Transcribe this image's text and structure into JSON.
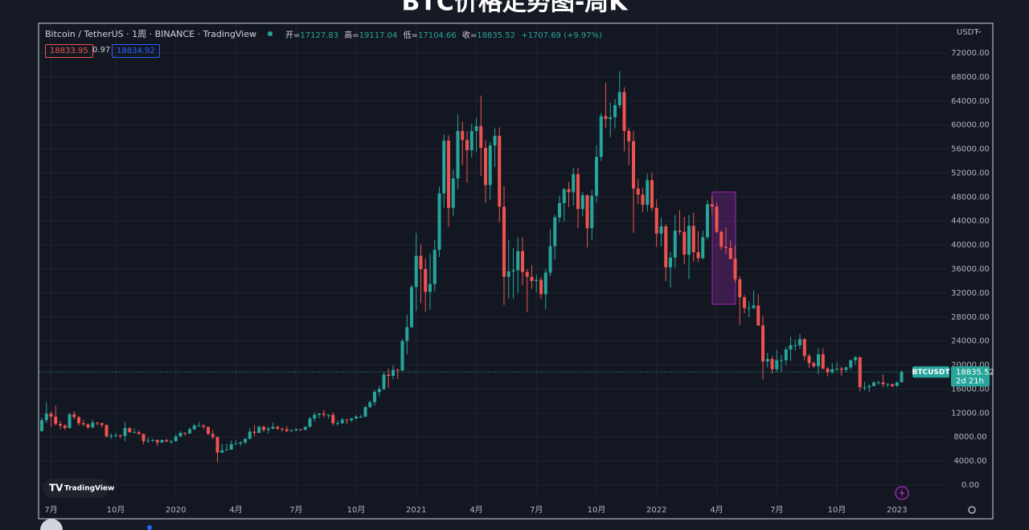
{
  "chart_data": {
    "type": "candlestick",
    "title": "BTC价格走势图-周K",
    "symbol_title": "Bitcoin / TetherUS · 1周 · BINANCE · TradingView",
    "open_label": "开=",
    "high_label": "高=",
    "low_label": "低=",
    "close_label": "收=",
    "change_label": "+1707.69 (+9.97%)",
    "bid": 18833.95,
    "spread": 0.97,
    "ask": 18834.92,
    "currency": "USDT",
    "price_tag_symbol": "BTCUSDT",
    "countdown": "2d 21h",
    "logo": "TradingView",
    "up_color": "#26a69a",
    "down_color": "#ef5350",
    "grid": true,
    "categories": [
      null,
      null,
      "7月",
      null,
      null,
      null,
      null,
      null,
      null,
      null,
      null,
      null,
      null,
      null,
      null,
      null,
      "10月",
      null,
      null,
      null,
      null,
      null,
      null,
      null,
      null,
      null,
      null,
      null,
      null,
      "2020",
      null,
      null,
      null,
      null,
      null,
      null,
      null,
      null,
      null,
      null,
      null,
      null,
      "4月",
      null,
      null,
      null,
      null,
      null,
      null,
      null,
      null,
      null,
      null,
      null,
      null,
      "7月",
      null,
      null,
      null,
      null,
      null,
      null,
      null,
      null,
      null,
      null,
      null,
      null,
      "10月",
      null,
      null,
      null,
      null,
      null,
      null,
      null,
      null,
      null,
      null,
      null,
      null,
      "2021",
      null,
      null,
      null,
      null,
      null,
      null,
      null,
      null,
      null,
      null,
      null,
      null,
      "4月",
      null,
      null,
      null,
      null,
      null,
      null,
      null,
      null,
      null,
      null,
      null,
      null,
      "7月",
      null,
      null,
      null,
      null,
      null,
      null,
      null,
      null,
      null,
      null,
      null,
      null,
      "10月",
      null,
      null,
      null,
      null,
      null,
      null,
      null,
      null,
      null,
      null,
      null,
      null,
      "2022",
      null,
      null,
      null,
      null,
      null,
      null,
      null,
      null,
      null,
      null,
      null,
      null,
      "4月",
      null,
      null,
      null,
      null,
      null,
      null,
      null,
      null,
      null,
      null,
      null,
      null,
      "7月",
      null,
      null,
      null,
      null,
      null,
      null,
      null,
      null,
      null,
      null,
      null,
      null,
      "10月",
      null,
      null,
      null,
      null,
      null,
      null,
      null,
      null,
      null,
      null,
      null,
      null,
      "2023",
      null
    ],
    "open": [
      9000,
      10800,
      11900,
      11400,
      10200,
      9900,
      9500,
      11800,
      11300,
      10300,
      10100,
      9600,
      10400,
      10300,
      10000,
      8100,
      8200,
      8300,
      8200,
      9500,
      8800,
      8800,
      8500,
      7300,
      7400,
      7500,
      7100,
      7500,
      7300,
      7300,
      8100,
      8700,
      8600,
      9300,
      9900,
      9900,
      9700,
      8500,
      8000,
      5400,
      5800,
      5900,
      6800,
      6900,
      7100,
      7700,
      8900,
      8700,
      9700,
      9200,
      9400,
      9700,
      9400,
      9300,
      9000,
      9100,
      9300,
      9200,
      9700,
      11100,
      11700,
      11900,
      11700,
      11700,
      10300,
      10300,
      10900,
      10800,
      11100,
      11400,
      11400,
      13000,
      13800,
      15500,
      16000,
      18400,
      18200,
      19200,
      19100,
      24000,
      26300,
      33000,
      38200,
      36000,
      32200,
      33500,
      39200,
      48600,
      57400,
      46200,
      51100,
      59000,
      57500,
      55800,
      59000,
      59800,
      56200,
      50000,
      56600,
      58200,
      46400,
      34700,
      35600,
      35800,
      39000,
      35500,
      34700,
      34000,
      34200,
      31800,
      35400,
      39800,
      44600,
      47000,
      49300,
      48800,
      51800,
      46000,
      48300,
      42800,
      48200,
      54700,
      61500,
      61000,
      61300,
      63300,
      65500,
      59000,
      57300,
      49400,
      48400,
      46700,
      50800,
      46200,
      41900,
      43100,
      36300,
      37900,
      42400,
      42200,
      38400,
      43200,
      38800,
      37800,
      41300,
      46800,
      46400,
      42200,
      39700,
      39500,
      37700,
      34300,
      31300,
      29500,
      29500,
      29900,
      26600,
      20600,
      21000,
      19300,
      20800,
      20800,
      22600,
      23300,
      23300,
      24300,
      21500,
      20300,
      19800,
      21800,
      19400,
      18800,
      19300,
      19400,
      19200,
      19600,
      20800,
      21300,
      16300,
      16300,
      16500,
      17100,
      17100,
      16800,
      16800,
      16500,
      17127.83
    ],
    "high": [
      11200,
      13800,
      12300,
      13200,
      10700,
      10200,
      12000,
      12300,
      11500,
      10900,
      10300,
      10900,
      10500,
      10400,
      10100,
      8600,
      8700,
      8400,
      10500,
      9600,
      9400,
      9100,
      8600,
      7900,
      7700,
      7600,
      7600,
      7700,
      7500,
      8500,
      9000,
      8800,
      9600,
      10200,
      10500,
      10200,
      9700,
      9200,
      8100,
      6900,
      6900,
      7400,
      7500,
      7300,
      7800,
      9500,
      10000,
      9900,
      9900,
      9700,
      10400,
      9900,
      9600,
      9800,
      9300,
      9500,
      9300,
      9800,
      11400,
      12100,
      12000,
      12500,
      11800,
      12100,
      10800,
      11200,
      11000,
      11200,
      11700,
      11700,
      13200,
      14100,
      15900,
      16500,
      18800,
      19400,
      19900,
      19400,
      24300,
      28400,
      33300,
      42000,
      40100,
      37800,
      38500,
      40900,
      49700,
      58400,
      58300,
      52600,
      61800,
      60600,
      59000,
      60200,
      61200,
      64900,
      57500,
      57200,
      59500,
      59600,
      49800,
      40900,
      39500,
      41300,
      41300,
      36000,
      36600,
      35100,
      34700,
      36000,
      42600,
      45000,
      48200,
      49500,
      50500,
      52900,
      52900,
      48800,
      48400,
      49200,
      56600,
      62000,
      67000,
      63700,
      64300,
      69000,
      66300,
      59500,
      59000,
      51000,
      49500,
      51900,
      52100,
      47600,
      44500,
      43500,
      38900,
      45000,
      45800,
      44700,
      45000,
      45400,
      42300,
      42400,
      47500,
      48200,
      47100,
      42400,
      42900,
      40800,
      40000,
      34800,
      31700,
      30600,
      32400,
      31800,
      28200,
      22000,
      21500,
      22500,
      21700,
      23000,
      24700,
      24200,
      25200,
      24500,
      21900,
      20600,
      22800,
      22800,
      19700,
      20300,
      20500,
      19700,
      19700,
      20900,
      21500,
      21400,
      17200,
      16800,
      17400,
      17400,
      18400,
      17000,
      16900,
      17200,
      19117.04
    ],
    "low": [
      8900,
      10300,
      9700,
      9900,
      9300,
      9200,
      9400,
      11000,
      9900,
      9800,
      9300,
      9400,
      9900,
      9600,
      7900,
      7700,
      7900,
      7800,
      7300,
      8700,
      8700,
      8400,
      6800,
      7100,
      7200,
      6500,
      7000,
      7100,
      6900,
      7200,
      8000,
      8200,
      8500,
      9100,
      9800,
      9300,
      8400,
      7600,
      3800,
      5300,
      5800,
      5900,
      6700,
      6500,
      6800,
      7600,
      8100,
      8600,
      8800,
      8600,
      9300,
      9200,
      8900,
      8800,
      8900,
      9000,
      9000,
      9100,
      9600,
      10600,
      11100,
      11300,
      11100,
      9900,
      9900,
      10200,
      10100,
      10500,
      10900,
      11200,
      11300,
      12800,
      13200,
      14800,
      15800,
      16200,
      17600,
      17700,
      18900,
      21800,
      26200,
      29000,
      30300,
      28900,
      29200,
      32300,
      38000,
      46200,
      43000,
      44900,
      49300,
      53300,
      50400,
      54600,
      55500,
      51500,
      47000,
      47500,
      53000,
      43800,
      30000,
      31100,
      31100,
      32000,
      33300,
      28800,
      32700,
      32100,
      31000,
      29300,
      34800,
      37600,
      43800,
      43900,
      46300,
      46600,
      42800,
      44800,
      39600,
      40800,
      47000,
      54000,
      59500,
      58000,
      59400,
      62800,
      55600,
      53300,
      42000,
      46800,
      45500,
      45600,
      45600,
      39700,
      39800,
      34000,
      32900,
      36200,
      41700,
      36800,
      34300,
      37200,
      37100,
      37600,
      40900,
      45100,
      41900,
      39200,
      38500,
      37600,
      33700,
      26700,
      28600,
      28000,
      29300,
      26500,
      17600,
      19600,
      18600,
      18800,
      18900,
      20000,
      20700,
      22400,
      22700,
      20800,
      19500,
      19500,
      18500,
      19300,
      18100,
      18500,
      19000,
      18200,
      18900,
      19200,
      20000,
      15600,
      15800,
      15500,
      16400,
      16700,
      16300,
      16300,
      16300,
      16400,
      17104.66
    ],
    "close": [
      10800,
      11900,
      11400,
      10200,
      9900,
      9500,
      11800,
      11300,
      10300,
      10100,
      9600,
      10400,
      10300,
      10000,
      8100,
      8200,
      8300,
      8200,
      9500,
      8800,
      8800,
      8500,
      7300,
      7400,
      7500,
      7100,
      7500,
      7300,
      7300,
      8100,
      8700,
      8600,
      9300,
      9900,
      9900,
      9700,
      8500,
      8000,
      5400,
      5800,
      5900,
      6800,
      6900,
      7100,
      7700,
      8900,
      8700,
      9700,
      9200,
      9400,
      9700,
      9400,
      9300,
      9000,
      9100,
      9300,
      9200,
      9700,
      11100,
      11700,
      11900,
      11700,
      11700,
      10300,
      10300,
      10900,
      10800,
      11100,
      11400,
      11400,
      13000,
      13800,
      15500,
      16000,
      18400,
      18200,
      19200,
      19100,
      24000,
      26300,
      33000,
      38200,
      36000,
      32200,
      33500,
      39200,
      48600,
      57400,
      46200,
      51100,
      59000,
      57500,
      55800,
      59000,
      59800,
      56200,
      50000,
      56600,
      58200,
      46400,
      34700,
      35600,
      35800,
      39000,
      35500,
      34700,
      34000,
      34200,
      31800,
      35400,
      39800,
      44600,
      47000,
      49300,
      48800,
      51800,
      46000,
      48300,
      42800,
      48200,
      54700,
      61500,
      61000,
      61300,
      63300,
      65500,
      59000,
      57300,
      49400,
      48400,
      46700,
      50800,
      46200,
      41900,
      43100,
      36300,
      37900,
      42400,
      42200,
      38400,
      43200,
      38800,
      37800,
      41300,
      46800,
      46400,
      42200,
      39700,
      39500,
      37700,
      34300,
      31300,
      29500,
      29500,
      29900,
      26600,
      20600,
      21000,
      19300,
      20800,
      20800,
      22600,
      23300,
      23300,
      24300,
      21500,
      20300,
      19800,
      21800,
      19400,
      18800,
      19300,
      19400,
      19200,
      19600,
      20800,
      21300,
      16300,
      16300,
      16500,
      17100,
      17100,
      16800,
      16800,
      16500,
      17127.83,
      18835.52
    ],
    "ylim": [
      0,
      72000
    ],
    "yticks": [
      {
        "value": 0,
        "label": "0.00"
      },
      {
        "value": 4000,
        "label": "4000.00"
      },
      {
        "value": 8000,
        "label": "8000.00"
      },
      {
        "value": 12000,
        "label": "12000.00"
      },
      {
        "value": 16000,
        "label": "16000.00"
      },
      {
        "value": 20000,
        "label": "20000.00"
      },
      {
        "value": 24000,
        "label": "24000.00"
      },
      {
        "value": 28000,
        "label": "28000.00"
      },
      {
        "value": 32000,
        "label": "32000.00"
      },
      {
        "value": 36000,
        "label": "36000.00"
      },
      {
        "value": 40000,
        "label": "40000.00"
      },
      {
        "value": 44000,
        "label": "44000.00"
      },
      {
        "value": 48000,
        "label": "48000.00"
      },
      {
        "value": 52000,
        "label": "52000.00"
      },
      {
        "value": 56000,
        "label": "56000.00"
      },
      {
        "value": 60000,
        "label": "60000.00"
      },
      {
        "value": 64000,
        "label": "64000.00"
      },
      {
        "value": 68000,
        "label": "68000.00"
      },
      {
        "value": 72000,
        "label": "72000.00"
      }
    ]
  }
}
